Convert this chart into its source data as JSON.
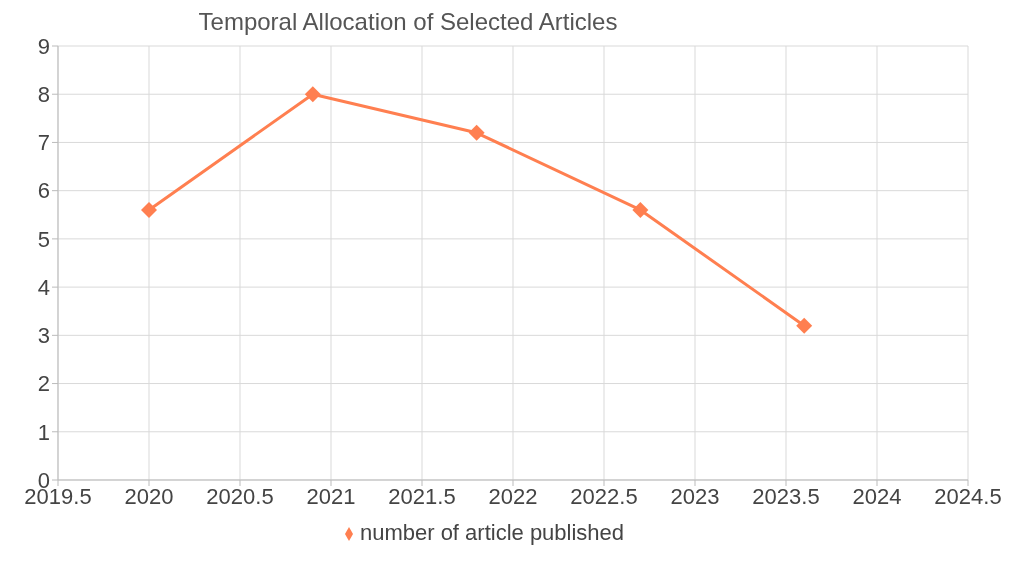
{
  "chart_data": {
    "type": "line",
    "title": "Temporal Allocation of Selected Articles",
    "series": [
      {
        "name": "number of article published",
        "color": "#ff7f50",
        "x": [
          2020,
          2020.9,
          2021.8,
          2022.7,
          2023.6
        ],
        "values": [
          5.6,
          8.0,
          7.2,
          5.6,
          3.2
        ]
      }
    ],
    "xlim": [
      2019.5,
      2024.5
    ],
    "xticks": [
      2019.5,
      2020,
      2020.5,
      2021,
      2021.5,
      2022,
      2022.5,
      2023,
      2023.5,
      2024,
      2024.5
    ],
    "ylim": [
      0,
      9
    ],
    "yticks": [
      0,
      1,
      2,
      3,
      4,
      5,
      6,
      7,
      8,
      9
    ],
    "grid": true,
    "legend": "bottom",
    "marker": "diamond",
    "line_style": "solid"
  }
}
